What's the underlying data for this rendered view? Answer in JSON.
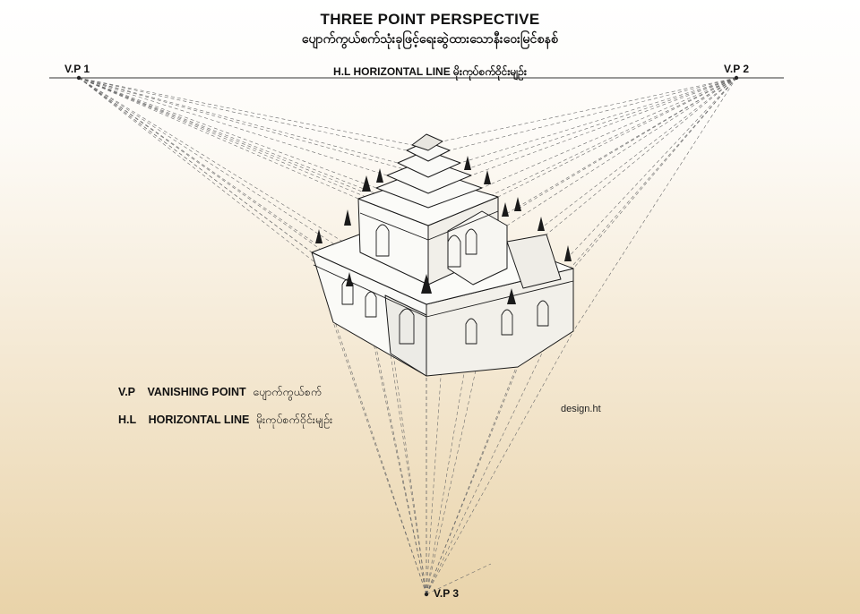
{
  "title": "THREE POINT PERSPECTIVE",
  "subtitle": "ပျောက်ကွယ်စက်သုံးခုဖြင့်ရေးဆွဲထားသောနီးဝေးမြင်စနစ်",
  "vanishing_points": {
    "vp1": "V.P 1",
    "vp2": "V.P 2",
    "vp3": "V.P 3"
  },
  "horizon_label": "H.L  HORIZONTAL LINE  မိုးကုပ်စက်ဝိုင်းမျဉ်း",
  "legend": {
    "vp_key": "V.P",
    "vp_text": "VANISHING POINT",
    "vp_myanmar": "ပျောက်ကွယ်စက်",
    "hl_key": "H.L",
    "hl_text": "HORIZONTAL LINE",
    "hl_myanmar": "မိုးကုပ်စက်ဝိုင်းမျဉ်း"
  },
  "credit": "design.ht",
  "colors": {
    "line": "#555555",
    "ink": "#1a1a1a",
    "bg_top": "#ffffff",
    "bg_bottom": "#e9d3a9"
  }
}
